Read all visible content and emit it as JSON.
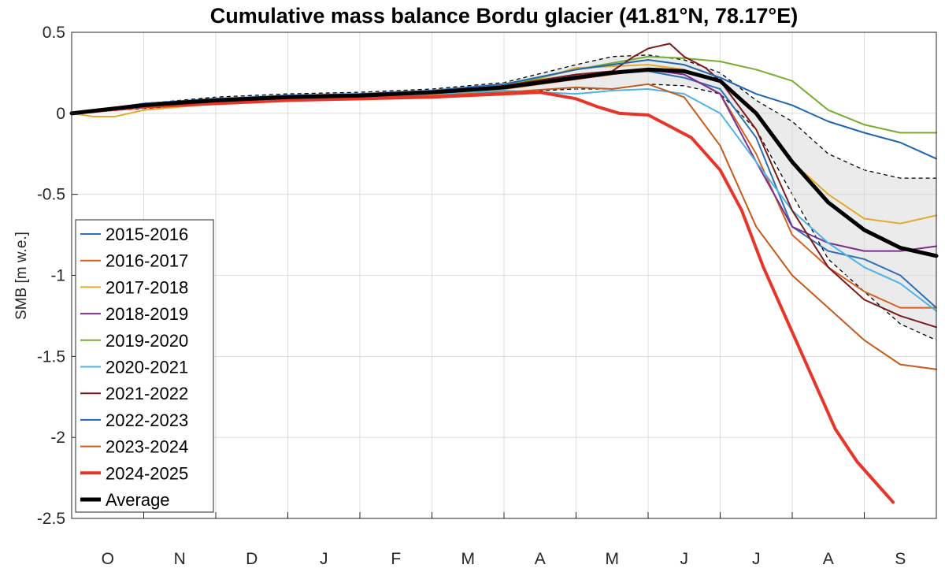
{
  "chart_data": {
    "type": "line",
    "title": "Cumulative mass balance Bordu glacier (41.81°N, 78.17°E)",
    "xlabel": "",
    "ylabel": "SMB [m w.e.]",
    "ylim": [
      -2.5,
      0.5
    ],
    "xlim": [
      0,
      12
    ],
    "yticks": [
      0.5,
      0,
      -0.5,
      -1,
      -1.5,
      -2,
      -2.5
    ],
    "ytick_labels": [
      "0.5",
      "0",
      "-0.5",
      "-1",
      "-1.5",
      "-2",
      "-2.5"
    ],
    "month_labels": [
      "O",
      "N",
      "D",
      "J",
      "F",
      "M",
      "A",
      "M",
      "J",
      "J",
      "A",
      "S"
    ],
    "grid": true,
    "legend_position": "lower-left",
    "series": [
      {
        "name": "2015-2016",
        "color": "#2a6fb8",
        "width": 2,
        "x": [
          0,
          1,
          2,
          3,
          4,
          5,
          6,
          7,
          8,
          8.5,
          9,
          9.5,
          10,
          10.5,
          11,
          11.5,
          12
        ],
        "y": [
          0,
          0.06,
          0.09,
          0.1,
          0.11,
          0.13,
          0.17,
          0.23,
          0.26,
          0.22,
          0.15,
          -0.15,
          -0.7,
          -0.85,
          -0.9,
          -1.0,
          -1.2
        ]
      },
      {
        "name": "2016-2017",
        "color": "#d65f22",
        "width": 2,
        "x": [
          0,
          1,
          2,
          3,
          4,
          5,
          6,
          7,
          8,
          8.5,
          9,
          9.5,
          10,
          10.5,
          11,
          11.5,
          12
        ],
        "y": [
          0,
          0.05,
          0.08,
          0.1,
          0.11,
          0.12,
          0.15,
          0.21,
          0.27,
          0.24,
          0.12,
          -0.25,
          -0.75,
          -0.95,
          -1.1,
          -1.2,
          -1.2
        ]
      },
      {
        "name": "2017-2018",
        "color": "#e3aa2b",
        "width": 2,
        "x": [
          0,
          0.3,
          0.6,
          1,
          2,
          3,
          4,
          5,
          6,
          7,
          8,
          8.5,
          9,
          9.5,
          10,
          10.5,
          11,
          11.5,
          12
        ],
        "y": [
          0,
          -0.02,
          -0.02,
          0.02,
          0.06,
          0.08,
          0.09,
          0.11,
          0.15,
          0.28,
          0.3,
          0.27,
          0.2,
          0,
          -0.3,
          -0.5,
          -0.65,
          -0.68,
          -0.63
        ]
      },
      {
        "name": "2018-2019",
        "color": "#7b2f8f",
        "width": 2,
        "x": [
          0,
          1,
          2,
          3,
          4,
          5,
          6,
          7,
          8,
          8.5,
          9,
          9.5,
          10,
          10.5,
          11,
          11.5,
          12
        ],
        "y": [
          0,
          0.05,
          0.08,
          0.1,
          0.11,
          0.13,
          0.16,
          0.22,
          0.27,
          0.24,
          0.12,
          -0.3,
          -0.7,
          -0.8,
          -0.85,
          -0.85,
          -0.82
        ]
      },
      {
        "name": "2019-2020",
        "color": "#77ac30",
        "width": 2,
        "x": [
          0,
          1,
          2,
          3,
          4,
          5,
          6,
          7,
          8,
          8.5,
          9,
          9.5,
          10,
          10.5,
          11,
          11.5,
          12
        ],
        "y": [
          0,
          0.05,
          0.08,
          0.1,
          0.11,
          0.13,
          0.17,
          0.27,
          0.35,
          0.34,
          0.32,
          0.27,
          0.2,
          0.02,
          -0.07,
          -0.12,
          -0.12
        ]
      },
      {
        "name": "2020-2021",
        "color": "#4db3e6",
        "width": 2,
        "x": [
          0,
          1,
          2,
          3,
          4,
          5,
          6,
          7,
          7.5,
          8,
          8.5,
          9,
          9.5,
          10,
          10.5,
          11,
          11.5,
          12
        ],
        "y": [
          0,
          0.05,
          0.08,
          0.1,
          0.11,
          0.12,
          0.14,
          0.12,
          0.14,
          0.15,
          0.12,
          0,
          -0.3,
          -0.6,
          -0.8,
          -0.95,
          -1.05,
          -1.22
        ]
      },
      {
        "name": "2021-2022",
        "color": "#7d1a1a",
        "width": 2,
        "x": [
          0,
          1,
          2,
          3,
          4,
          5,
          6,
          7,
          7.5,
          7.8,
          8,
          8.3,
          8.5,
          8.8,
          9,
          9.5,
          10,
          10.5,
          11,
          11.5,
          12
        ],
        "y": [
          0,
          0.05,
          0.08,
          0.1,
          0.11,
          0.13,
          0.17,
          0.24,
          0.26,
          0.35,
          0.4,
          0.43,
          0.35,
          0.28,
          0.2,
          -0.1,
          -0.6,
          -0.95,
          -1.15,
          -1.25,
          -1.32
        ]
      },
      {
        "name": "2022-2023",
        "color": "#1f65b0",
        "width": 2,
        "x": [
          0,
          1,
          2,
          3,
          4,
          5,
          6,
          7,
          8,
          8.5,
          9,
          9.5,
          10,
          10.5,
          11,
          11.5,
          12
        ],
        "y": [
          0,
          0.06,
          0.09,
          0.11,
          0.12,
          0.14,
          0.18,
          0.27,
          0.33,
          0.3,
          0.22,
          0.12,
          0.05,
          -0.05,
          -0.12,
          -0.18,
          -0.28
        ]
      },
      {
        "name": "2023-2024",
        "color": "#c55a1e",
        "width": 2,
        "x": [
          0,
          1,
          2,
          3,
          4,
          5,
          6,
          7,
          7.5,
          8,
          8.5,
          9,
          9.5,
          10,
          10.5,
          11,
          11.5,
          12
        ],
        "y": [
          0,
          0.05,
          0.07,
          0.09,
          0.1,
          0.11,
          0.13,
          0.16,
          0.15,
          0.18,
          0.1,
          -0.2,
          -0.7,
          -1.0,
          -1.2,
          -1.4,
          -1.55,
          -1.58
        ]
      },
      {
        "name": "2024-2025",
        "color": "#e8352a",
        "width": 4,
        "x": [
          0,
          1,
          2,
          3,
          4,
          5,
          6,
          6.5,
          7,
          7.3,
          7.6,
          8,
          8.3,
          8.6,
          9,
          9.3,
          9.6,
          10,
          10.3,
          10.6,
          10.9,
          11.2,
          11.4
        ],
        "y": [
          0,
          0.04,
          0.06,
          0.08,
          0.09,
          0.1,
          0.12,
          0.13,
          0.09,
          0.04,
          0.0,
          -0.01,
          -0.08,
          -0.15,
          -0.35,
          -0.6,
          -0.95,
          -1.35,
          -1.65,
          -1.95,
          -2.15,
          -2.3,
          -2.4
        ]
      },
      {
        "name": "Average",
        "color": "#000000",
        "width": 5,
        "x": [
          0,
          1,
          2,
          3,
          4,
          5,
          6,
          7,
          7.5,
          8,
          8.5,
          9,
          9.5,
          10,
          10.5,
          11,
          11.5,
          12
        ],
        "y": [
          0,
          0.05,
          0.08,
          0.1,
          0.11,
          0.13,
          0.16,
          0.22,
          0.25,
          0.27,
          0.26,
          0.2,
          0.0,
          -0.3,
          -0.55,
          -0.72,
          -0.83,
          -0.88
        ]
      }
    ],
    "band": {
      "name": "spread",
      "fill": "#ebebeb",
      "x": [
        0,
        1,
        2,
        3,
        4,
        5,
        6,
        7,
        7.5,
        8,
        8.5,
        9,
        9.5,
        10,
        10.5,
        11,
        11.5,
        12
      ],
      "upper": [
        0,
        0.06,
        0.1,
        0.12,
        0.13,
        0.15,
        0.19,
        0.3,
        0.35,
        0.36,
        0.33,
        0.25,
        0.08,
        -0.05,
        -0.25,
        -0.35,
        -0.4,
        -0.4
      ],
      "lower": [
        0,
        0.03,
        0.06,
        0.08,
        0.09,
        0.1,
        0.13,
        0.15,
        0.15,
        0.18,
        0.17,
        0.12,
        -0.1,
        -0.5,
        -0.9,
        -1.1,
        -1.3,
        -1.4
      ]
    }
  }
}
